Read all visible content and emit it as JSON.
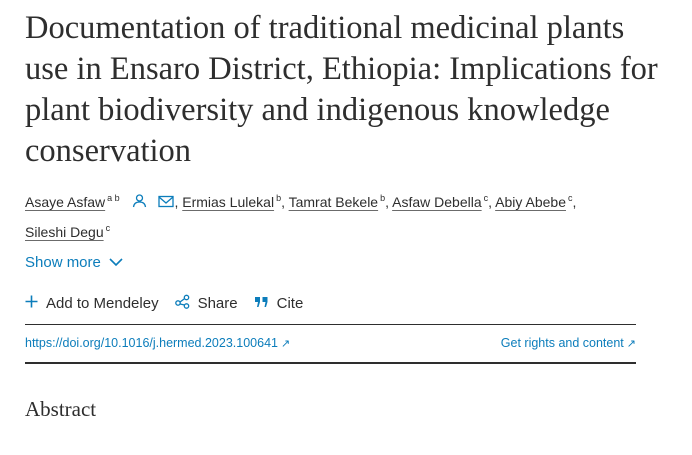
{
  "article": {
    "title": "Documentation of traditional medicinal plants use in Ensaro District, Ethiopia: Implications for plant biodiversity and indigenous knowledge conservation"
  },
  "authors": [
    {
      "name": "Asaye Asfaw",
      "aff": "a b"
    },
    {
      "name": "Ermias Lulekal",
      "aff": "b"
    },
    {
      "name": "Tamrat Bekele",
      "aff": "b"
    },
    {
      "name": "Asfaw Debella",
      "aff": "c"
    },
    {
      "name": "Abiy Abebe",
      "aff": "c"
    },
    {
      "name": "Sileshi Degu",
      "aff": "c"
    }
  ],
  "show_more": "Show more",
  "actions": {
    "mendeley": "Add to Mendeley",
    "share": "Share",
    "cite": "Cite"
  },
  "links": {
    "doi": "https://doi.org/10.1016/j.hermed.2023.100641",
    "rights": "Get rights and content"
  },
  "sections": {
    "abstract": "Abstract"
  },
  "colors": {
    "link": "#0c7dbb",
    "text": "#2e2e2e"
  },
  "icons": {
    "person": "person-icon",
    "mail": "mail-icon",
    "chevron": "chevron-down-icon",
    "plus": "plus-icon",
    "share": "share-icon",
    "cite": "quote-icon",
    "external": "external-link-icon"
  }
}
